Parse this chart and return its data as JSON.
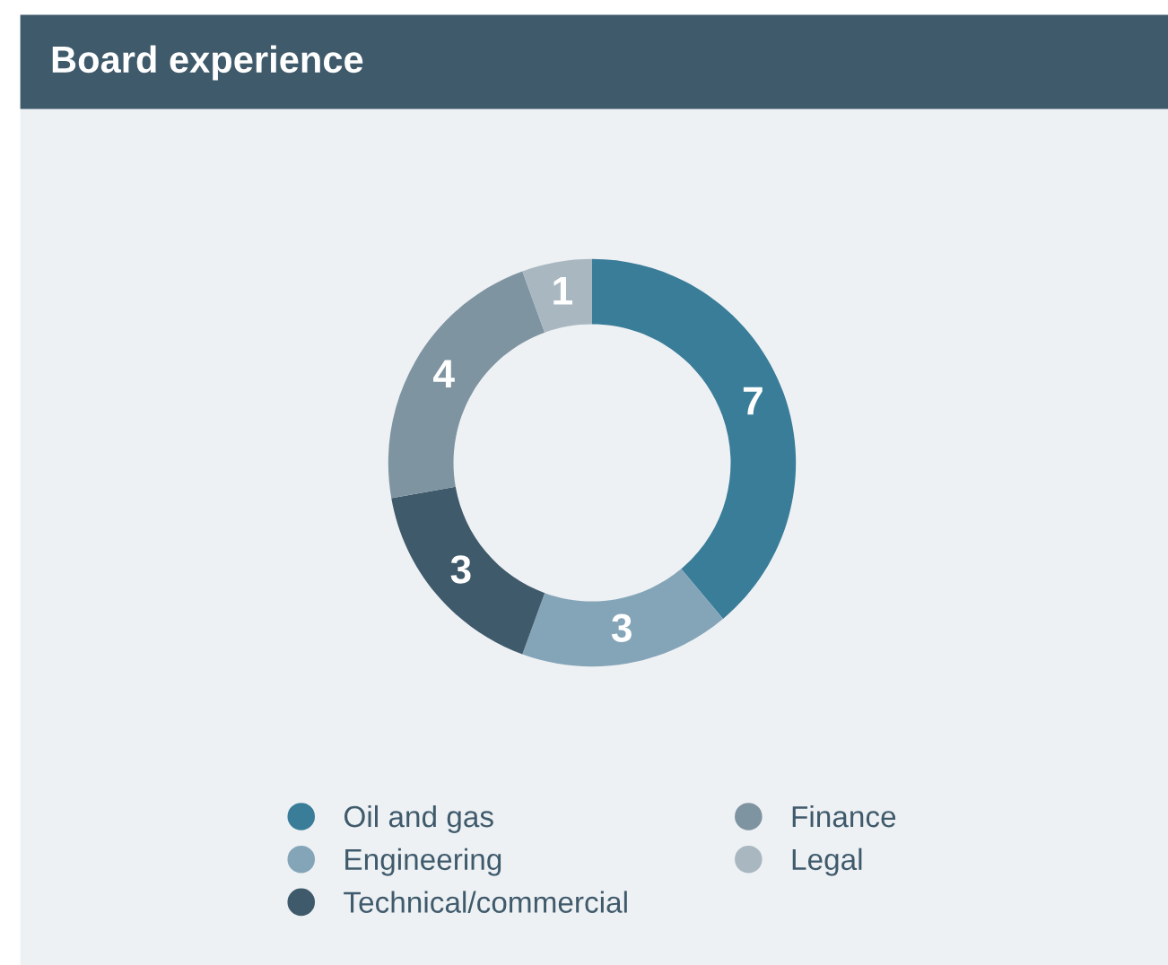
{
  "chart_data": {
    "type": "donut",
    "title": "Board experience",
    "categories": [
      "Oil and gas",
      "Engineering",
      "Technical/commercial",
      "Finance",
      "Legal"
    ],
    "values": [
      7,
      3,
      3,
      4,
      1
    ],
    "colors": [
      "#3a7d99",
      "#84a5b8",
      "#3f5a6b",
      "#7f94a1",
      "#a9b7c0"
    ],
    "data_labels": true,
    "legend": "bottom"
  }
}
